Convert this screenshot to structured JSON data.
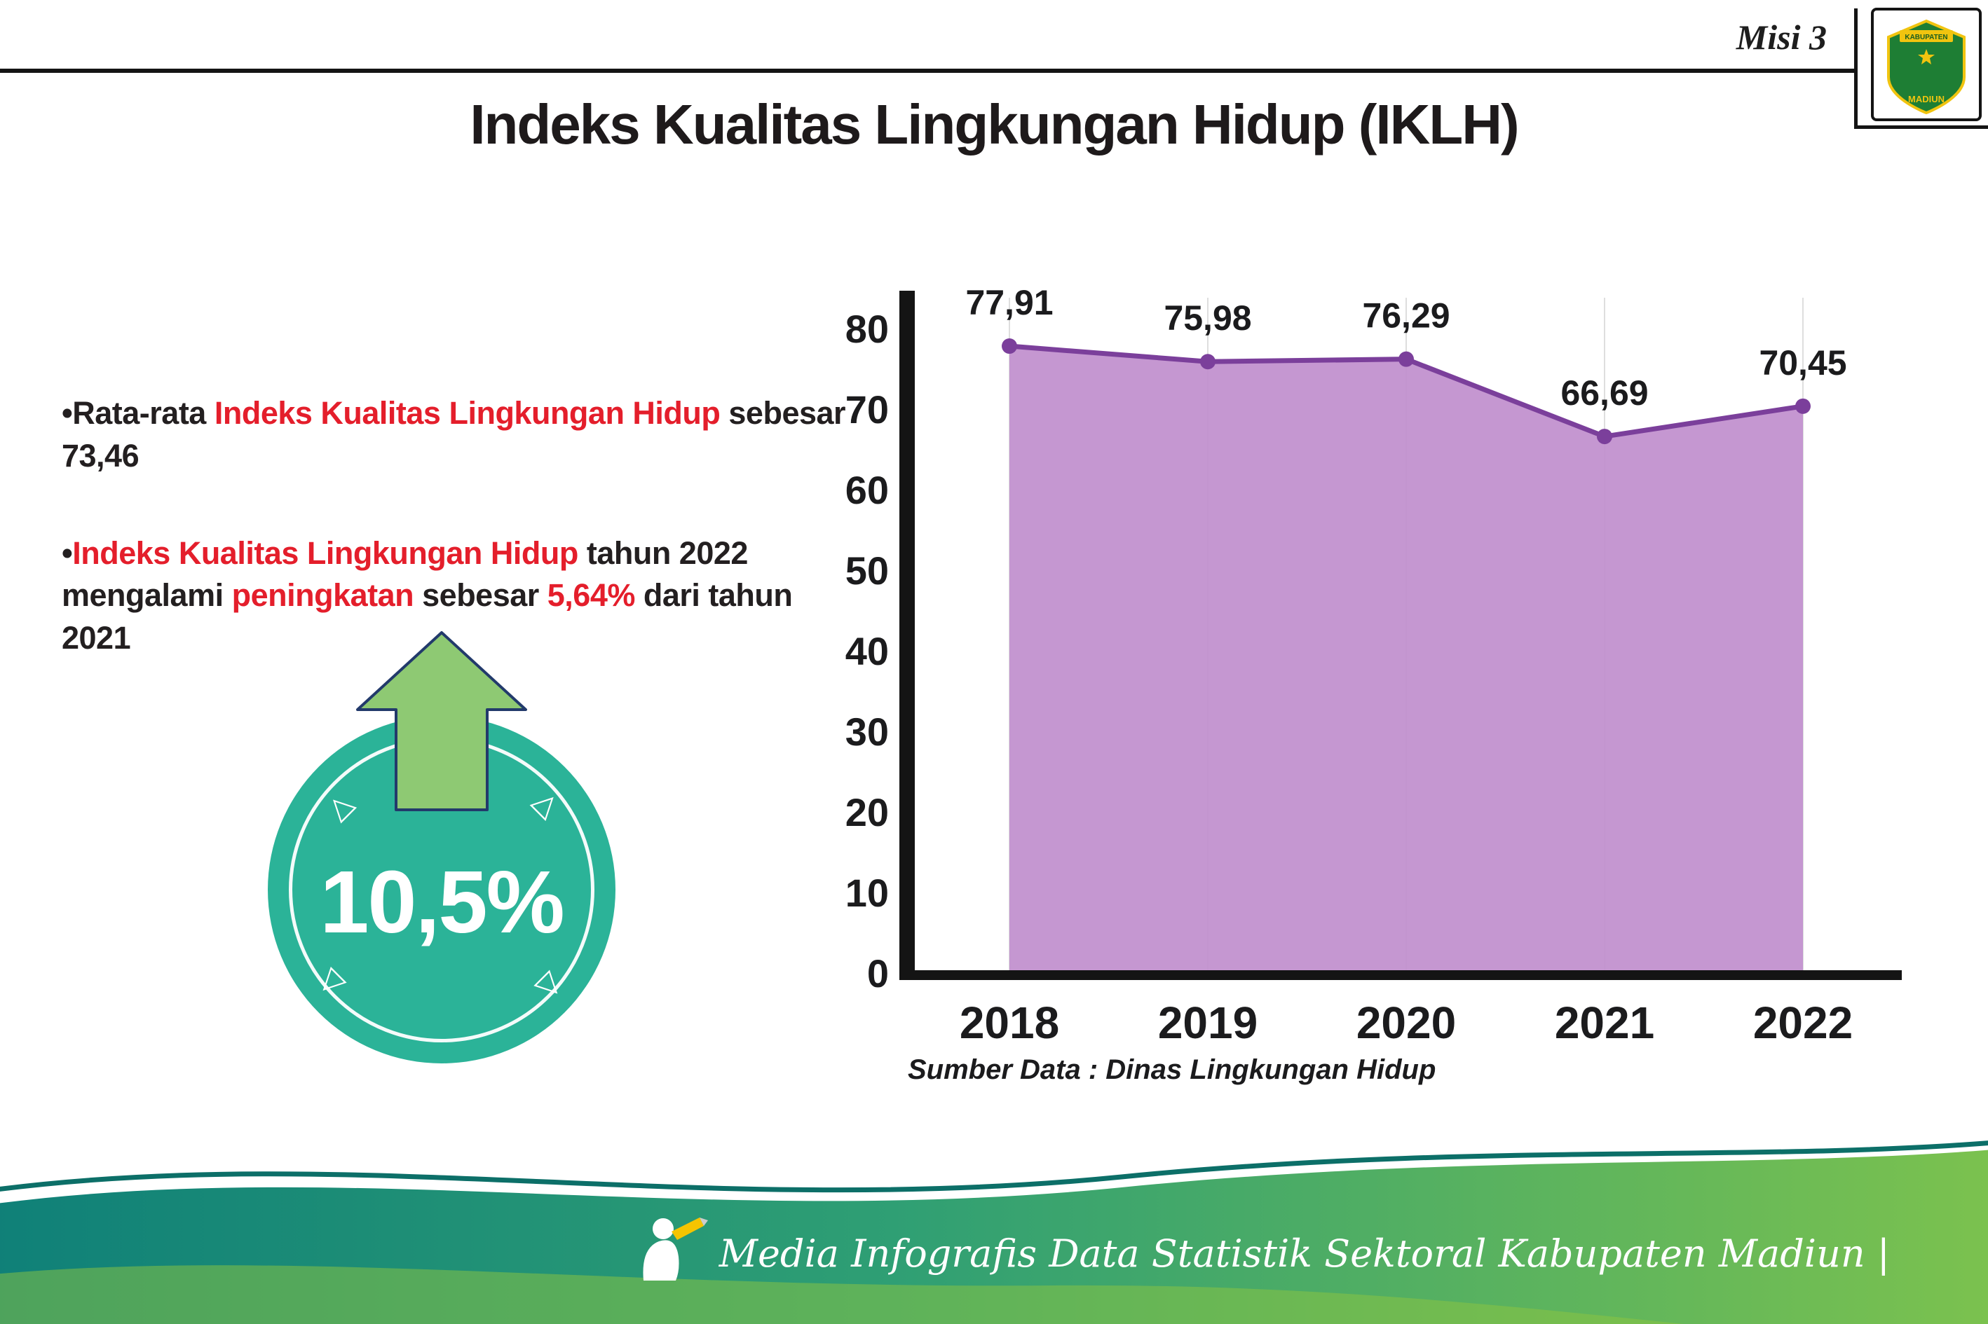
{
  "header": {
    "misi_label": "Misi 3",
    "crest": {
      "top": "KABUPATEN",
      "bottom": "MADIUN"
    }
  },
  "title": "Indeks Kualitas Lingkungan Hidup (IKLH)",
  "bullet_marker": "•",
  "icons": {
    "ring_arrow": "▷"
  },
  "colors": {
    "red": "#e41e2b",
    "dark": "#231f20",
    "teal_badge": "#2bb398",
    "arrow_green": "#8ec973",
    "band_teal": "#0f8078",
    "band_green": "#7cc24e"
  },
  "bullets": [
    {
      "segments": [
        {
          "text": "Rata-rata ",
          "color": "dark"
        },
        {
          "text": "Indeks Kualitas Lingkungan Hidup",
          "color": "red"
        },
        {
          "text": " sebesar 73,46",
          "color": "dark"
        }
      ]
    },
    {
      "segments": [
        {
          "text": "Indeks Kualitas Lingkungan Hidup",
          "color": "red"
        },
        {
          "text": " tahun 2022 mengalami ",
          "color": "dark"
        },
        {
          "text": "peningkatan",
          "color": "red"
        },
        {
          "text": " sebesar ",
          "color": "dark"
        },
        {
          "text": "5,64%",
          "color": "red"
        },
        {
          "text": " dari tahun 2021",
          "color": "dark"
        }
      ]
    }
  ],
  "badge": {
    "value": "10,5%"
  },
  "chart_data": {
    "type": "area",
    "title": "Indeks Kualitas Lingkungan Hidup (IKLH)",
    "categories": [
      "2018",
      "2019",
      "2020",
      "2021",
      "2022"
    ],
    "values": [
      77.91,
      75.98,
      76.29,
      66.69,
      70.45
    ],
    "value_labels": [
      "77,91",
      "75,98",
      "76,29",
      "66,69",
      "70,45"
    ],
    "xlabel": "",
    "ylabel": "",
    "ylim": [
      0,
      80
    ],
    "yticks": [
      0,
      10,
      20,
      30,
      40,
      50,
      60,
      70,
      80
    ],
    "grid": "vertical-light",
    "legend": "none",
    "line_color": "#7b3f9b",
    "point_color": "#7b3f9b",
    "fill_color": "#c08ecd",
    "source": "Sumber Data : Dinas Lingkungan Hidup"
  },
  "footer": {
    "text": "Media Infografis Data Statistik Sektoral Kabupaten Madiun |"
  }
}
